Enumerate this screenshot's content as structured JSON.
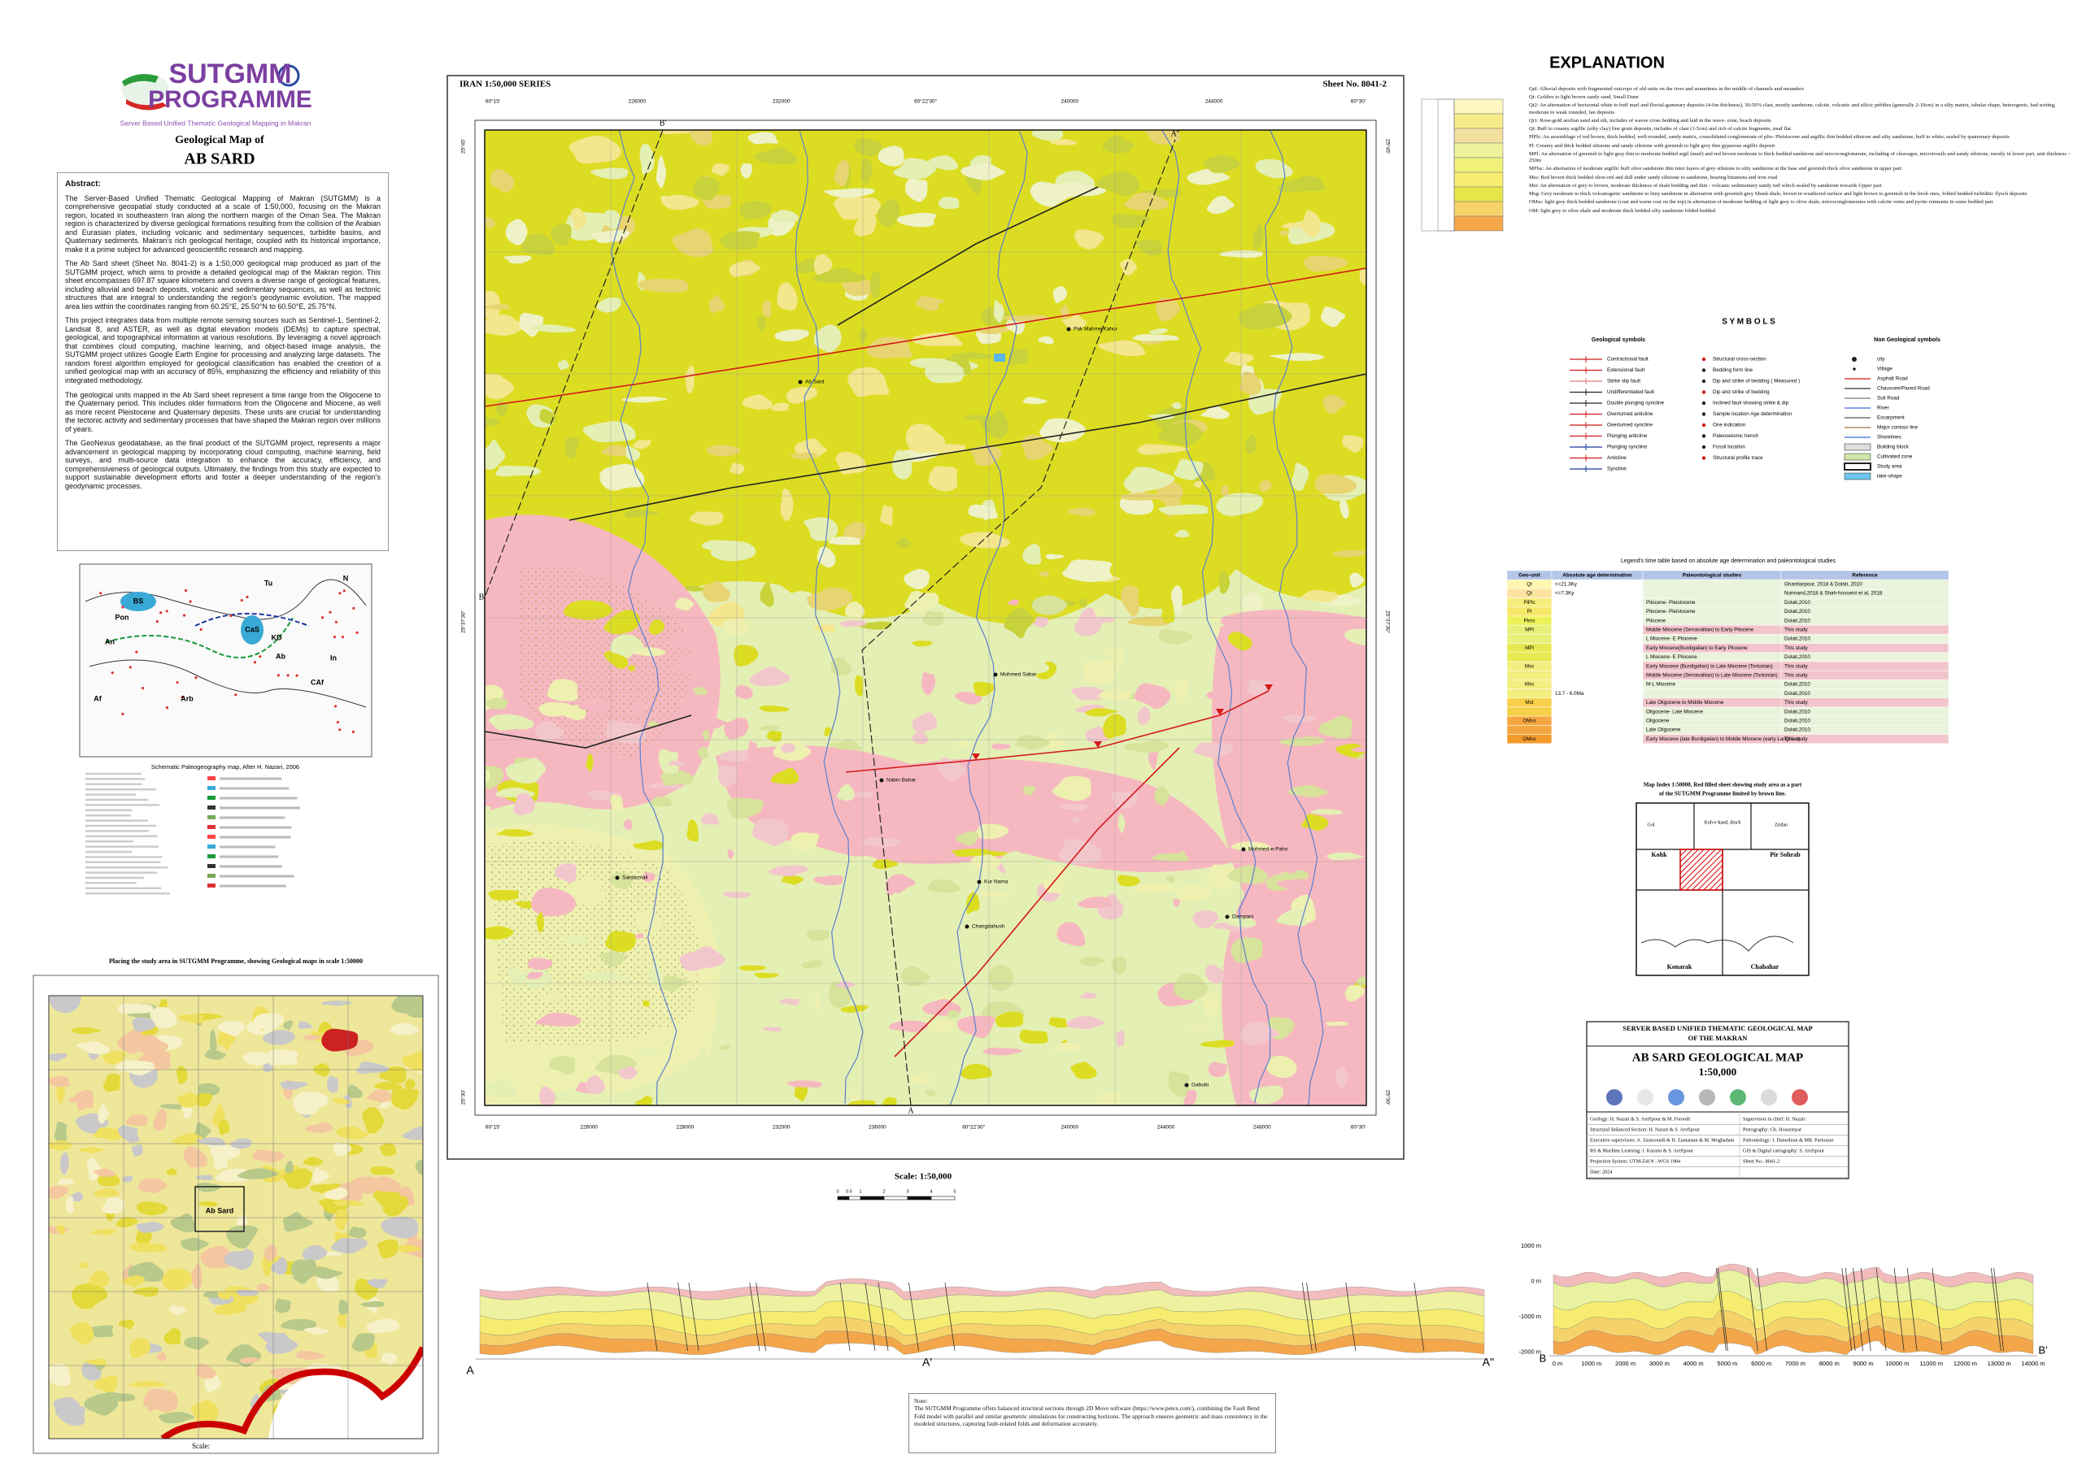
{
  "logo": {
    "title": "SUTGMM",
    "subtitle": "PROGRAMME",
    "tagline": "Server Based Unified Thematic Geological Mapping in Makran"
  },
  "header": {
    "kicker": "Geological Map of",
    "title": "AB SARD"
  },
  "abstract": {
    "heading": "Abstract:",
    "paragraphs": [
      "The Server-Based Unified Thematic Geological Mapping of Makran (SUTGMM) is a comprehensive geospatial study conducted at a scale of 1:50,000, focusing on the Makran region, located in southeastern Iran along the northern margin of the Oman Sea. The Makran region is characterized by diverse geological formations resulting from the collision of the Arabian and Eurasian plates, including volcanic and sedimentary sequences, turbidite basins, and Quaternary sediments. Makran's rich geological heritage, coupled with its historical importance, make it a prime subject for advanced geoscientific research and mapping.",
      "The Ab Sard sheet (Sheet No. 8041-2) is a 1:50,000 geological map produced as part of the SUTGMM project, which aims to provide a detailed geological map of the Makran region. This sheet encompasses 697.87 square kilometers and covers a diverse range of geological features, including alluvial and beach deposits, volcanic and sedimentary sequences, as well as tectonic structures that are integral to understanding the region's geodynamic evolution. The mapped area lies within the coordinates ranging from 60.25°E, 25.50°N to 60.50°E, 25.75°N.",
      "This project integrates data from multiple remote sensing sources such as Sentinel-1, Sentinel-2, Landsat 8, and ASTER, as well as digital elevation models (DEMs) to capture spectral, geological, and topographical information at various resolutions. By leveraging a novel approach that combines cloud computing, machine learning, and object-based image analysis, the SUTGMM project utilizes Google Earth Engine for processing and analyzing large datasets. The random forest algorithm employed for geological classification has enabled the creation of a unified geological map with an accuracy of 85%, emphasizing the efficiency and reliability of this integrated methodology.",
      "The geological units mapped in the Ab Sard sheet represent a time range from the Oligocene to the Quaternary period. This includes older formations from the Oligocene and Miocene, as well as more recent Pleistocene and Quaternary deposits. These units are crucial for understanding the tectonic activity and sedimentary processes that have shaped the Makran region over millions of years.",
      "The GeoNexus geodatabase, as the final product of the SUTGMM project, represents a major advancement in geological mapping by incorporating cloud computing, machine learning, field surveys, and multi-source data integration to enhance the accuracy, efficiency, and comprehensiveness of geological outputs. Ultimately, the findings from this study are expected to support sustainable development efforts and foster a deeper understanding of the region's geodynamic processes."
    ]
  },
  "paleogeography": {
    "caption": "Schematic Paleogeography map, After H. Nazari, 2006",
    "labels": [
      "BS",
      "Pon",
      "An",
      "CaS",
      "KD",
      "Ab",
      "Af",
      "Arb",
      "CAf",
      "In",
      "Tu",
      "N"
    ]
  },
  "inset": {
    "caption": "Placing the study area in SUTGMM Programme, showing Geological maps in scale 1:50000",
    "label": "Ab Sard",
    "scale": "Scale:"
  },
  "map": {
    "series": "IRAN 1:50,000 SERIES",
    "sheet": "Sheet No. 8041-2",
    "top_labels": [
      "60°15'",
      "226000",
      "232000",
      "60°22'30\"",
      "240000",
      "244000",
      "60°30'"
    ],
    "bottom_labels": [
      "60°15'",
      "226000",
      "228000",
      "232000",
      "236000",
      "60°22'30\"",
      "240000",
      "244000",
      "248000",
      "60°30'"
    ],
    "left_labels": [
      "25°45'",
      "25°37'30\"",
      "25°30'"
    ],
    "right_labels": [
      "25°45'",
      "25°37'30\"",
      "25°30'"
    ],
    "section_labels": [
      "B'",
      "A''",
      "B",
      "A"
    ],
    "places": [
      "Pak Mahme Kahur",
      "Ab Sard",
      "Mohmed Sabar",
      "Nabin Bahar",
      "Kur Nama",
      "Mohmed-e-Pahn",
      "Sardarmail",
      "Changdahush",
      "Dampani",
      "Gabubi"
    ]
  },
  "scale": {
    "title": "Scale: 1:50,000",
    "ticks": [
      "0",
      "0.5",
      "1",
      "2",
      "3",
      "4",
      "5"
    ]
  },
  "section_a": {
    "labels": [
      "A",
      "A'",
      "A''"
    ]
  },
  "note": {
    "heading": "Note:",
    "text": "The SUTGMM Programme offers balanced structural sections through 2D Move software (https://www.petex.com/), combining the Fault Bend Fold model with parallel and similar geometric simulations for constructing horizons. The approach ensures geometric and mass consistency in the modeled structures, capturing fault-related folds and deformation accurately."
  },
  "explanation": {
    "title": "EXPLANATION",
    "entries": [
      "Qal: Alluvial deposits with fragmented outcrops of old units on the river and sometimes in the middle of channels and meanders",
      "Qt: Goldies to light brown sandy sand, Small Dune",
      "Qt2: An alternation of horizontal white to buff marl and fluvial-gametary deposits (4-6m thickness), 30-50% clast, mostly sandstone, calcite, volcanic and silicic pebbles (generally 2-10cm) in a silty matrix, tabular shape, heterogenic, bad sorting, moderate to weak rounded, fan deposits",
      "Qt1: Rose-gold aeolian sand and silt, includes of wavee cross bedding and laid in the wave- zone, beach deposits",
      "Qt: Buff to creamy argillic (silty clay) fine grain deposits, includes of clast (1-5cm) and rich of calcite fragments, mud flat",
      "PlPlc: An assemblage of red brown, thick bedded, well-rounded, sandy matrix, consolidated conglomerate of plio- Pleistocene and argillic thin bedded siltstone and silty sandstone, buff to white, sealed by quaternary deposits",
      "Pl: Creamy and thick bedded siltstone and sandy siltstone with greenish to light grey thin gypseous argillic deposit",
      "MPl: An alternation of greenish to light gray thin to moderate bedded argil (marl) and red brown moderate to thick bedded sandstone and microconglomerate, including of cleavages, microfossils and sandy siltstone, mostly in lower part, unit thickness ~ 250m",
      "MPlss: An alternation of moderate argillic buff olive sandstone thin inter layers of grey siltstone to silty sandstone at the base and greenish thick olive sandstone in upper part",
      "Mss: Red brown thick bedded olive-red and dull under sandy siltstone to sandstone, bearing bitumens and iron road",
      "Mst: An alternation of grey to brown, moderate thickness of shale bedding and thin - volcanic sedimentary sandy tuff which sealed by sandstone towards Upper part",
      "Msg: Grey moderate to thick volcanogenic sandstone to limy sandstone in alternation with greenish grey Shush shale, brown in weathered surface and light brown to greenish in the fresh ones, folded bedded turbiditic flysch deposits",
      "OMss: light grey thick bedded sandstone (coat and warm cost on the top) in alternation of moderate bedding of light grey to olive shale, microconglomerates with calcite veins and pyrite remnants in some bedded part",
      "OM: light grey to olive shale and moderate thick bedded silty sandstone folded bedded"
    ]
  },
  "symbols": {
    "title": "S Y M B O L S",
    "geological_heading": "Geological symbols",
    "geological": [
      "Contractional fault",
      "Extensional fault",
      "Strike slip fault",
      "Undifferentiated fault",
      "Double plunging syncline",
      "Overturned anticline",
      "Overturned syncline",
      "Plunging anticline",
      "Plunging syncline",
      "Anticline",
      "Syncline"
    ],
    "geological_2": [
      "Structural cross-section",
      "Bedding form line",
      "Dip and strike of bedding ( Measured )",
      "Dip and strike of bedding",
      "Inclined fault showing strike & dip",
      "Sample location Age determination",
      "One indication",
      "Paleoseismic trench",
      "Fossil location",
      "Structural profile trace"
    ],
    "non_geological_heading": "Non Geological symbols",
    "non_geological": [
      "city",
      "Village",
      "Asphalt Road",
      "Chaussee/Paved Road",
      "Soil Road",
      "River",
      "Escarpment",
      "Major contour line",
      "Shorelines",
      "Building block",
      "Cultivated zone",
      "Study area",
      "lake-shape"
    ]
  },
  "time_table": {
    "title": "Legend's time table based on absolute age determination and paleontological studies",
    "columns": [
      "Geo-unit",
      "Absolute age determination",
      "Paleontological studies",
      "Reference"
    ],
    "rows": [
      {
        "unit": "Qt",
        "age": "<=21.3Ky",
        "reference": "Ghanbarpour, 2018 & Dolati, 2010"
      },
      {
        "unit": "Qt",
        "age": "<=7.3Ky",
        "reference": "Normand,2018 & Shah-hosseini et al, 2018"
      },
      {
        "unit": "PlPlc",
        "paleo": "Pliocene- Pleistocene",
        "reference": "Dolati,2010"
      },
      {
        "unit": "Pl",
        "paleo": "Pliocene- Pleistocene",
        "reference": "Dolati,2010"
      },
      {
        "unit": "Plms",
        "paleo": "Pliocene",
        "reference": "Dolati,2010"
      },
      {
        "unit": "MPl",
        "paleo": "Middle Miocene (Serravallian) to Early Pliocene",
        "reference": "This study"
      },
      {
        "paleo": "L Miocene- E Pliocene",
        "reference": "Dolati,2010"
      },
      {
        "unit": "MPl",
        "paleo": "Early Miocene(Burdigalian) to Early Pliocene",
        "reference": "This study"
      },
      {
        "paleo": "L Miocene- E Pliocene",
        "reference": "Dolati,2010"
      },
      {
        "unit": "Mss",
        "paleo": "Early Miocene (Burdigalian) to Late Miocene (Tortonian)",
        "reference": "This study"
      },
      {
        "paleo": "Middle Miocene (Serravallian) to Late Miocene (Tortonian)",
        "reference": "This study"
      },
      {
        "unit": "Mss",
        "paleo": "M-L Miocene",
        "reference": "Dolati,2010"
      },
      {
        "age": "13.7 - 6.0Ma",
        "reference": "Dolati,2010"
      },
      {
        "unit": "Mst",
        "paleo": "Late Oligocene to Middle Miocene",
        "reference": "This study"
      },
      {
        "paleo": "Oligocene- Late Miocene",
        "reference": "Dolati,2010"
      },
      {
        "unit": "OMss",
        "paleo": "Oligocene",
        "reference": "Dolati,2010"
      },
      {
        "paleo": "Late Oligocene",
        "reference": "Dolati,2010"
      },
      {
        "unit": "OMss",
        "paleo": "Early Miocene (late Burdigalian) to Middle Miocene (early Langhian)",
        "reference": "This study"
      }
    ]
  },
  "map_index": {
    "caption": [
      "Map Index 1:50000, Red filled sheet showing study area as a part",
      "of the SUTGMM Programme limited by brown line."
    ],
    "labels": [
      "Gol",
      "Kuh-e-kand, dinch",
      "Zirdan",
      "Kohk",
      "Pir Sohrab",
      "Konarak",
      "Chabahar"
    ]
  },
  "title_block": {
    "program": "SERVER BASED UNIFIED THEMATIC GEOLOGICAL MAP OF THE MAKRAN",
    "title": "AB SARD GEOLOGICAL MAP",
    "scale": "1:50,000",
    "credits": [
      "Geology: H. Nazari & S. Arefipour & M. Foroodi",
      "Supervisors in chief: H. Nazari",
      "Structural Balanced Section: H. Nazari & S. Arefipour",
      "Petrography: Gh. Hosseinyar",
      "Executive supervisors: A. Zarasvandi & H. Zamanian & M. Moghadam",
      "Paleontology: J. Daneshian & MR. Partoazar",
      "RS & Machine Learning: J. Karami & S. Arefipour",
      "GIS & Digital cartography: S. Arefipour",
      "Projection System: UTM-Z41N ; WGS 1984",
      "Sheet No.: 8041-2",
      "Date: 2024"
    ]
  },
  "section_b": {
    "y_labels": [
      "1000 m",
      "0 m",
      "-1000 m",
      "-2000 m"
    ],
    "x_labels": [
      "0 m",
      "1000 m",
      "2000 m",
      "3000 m",
      "4000 m",
      "5000 m",
      "6000 m",
      "7000 m",
      "8000 m",
      "9000 m",
      "10000 m",
      "11000 m",
      "12000 m",
      "13000 m",
      "14000 m"
    ],
    "start": "B",
    "end": "B'"
  }
}
